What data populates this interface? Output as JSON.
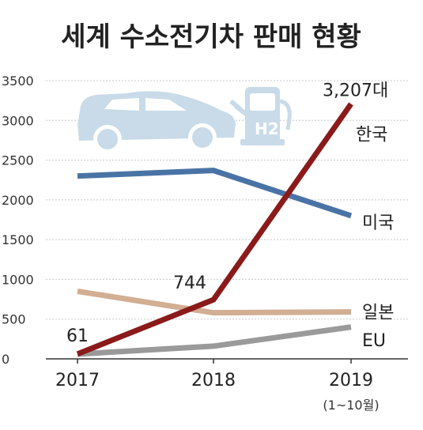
{
  "chart_data": {
    "type": "line",
    "title": "세계 수소전기차 판매 현황",
    "x": [
      "2017",
      "2018",
      "2019"
    ],
    "x_sublabel": "(1~10월)",
    "ylim": [
      0,
      3500
    ],
    "yticks": [
      0,
      500,
      1000,
      1500,
      2000,
      2500,
      3000,
      3500
    ],
    "grid": true,
    "series": [
      {
        "name": "한국",
        "values": [
          61,
          744,
          3207
        ],
        "color": "#8b1a1a"
      },
      {
        "name": "미국",
        "values": [
          2300,
          2370,
          1800
        ],
        "color": "#4a73a5"
      },
      {
        "name": "일본",
        "values": [
          850,
          580,
          590
        ],
        "color": "#d2ae93"
      },
      {
        "name": "EU",
        "values": [
          60,
          160,
          400
        ],
        "color": "#9a9a9a"
      }
    ],
    "annotations": [
      {
        "series": "한국",
        "index": 0,
        "text": "61"
      },
      {
        "series": "한국",
        "index": 1,
        "text": "744"
      },
      {
        "series": "한국",
        "index": 2,
        "text": "3,207대"
      }
    ]
  },
  "illustration": {
    "icons": [
      "car-icon",
      "hydrogen-charger-icon"
    ],
    "charger_label": "H2",
    "color": "#c9dbe8"
  }
}
